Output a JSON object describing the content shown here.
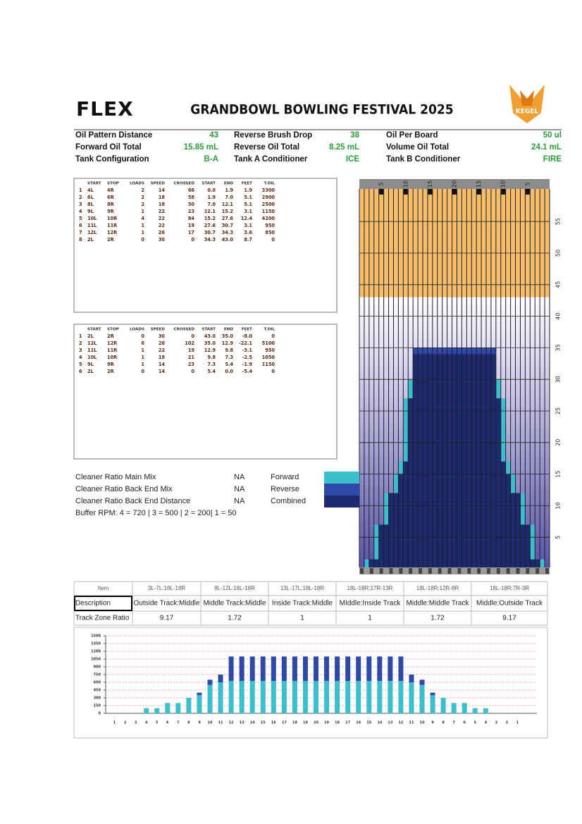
{
  "header": {
    "logo": "FLEX",
    "title": "GRANDBOWL BOWLING FESTIVAL 2025",
    "brand": "KEGEL"
  },
  "specs": [
    [
      {
        "label": "Oil Pattern Distance",
        "value": "43"
      },
      {
        "label": "Reverse Brush Drop",
        "value": "38"
      },
      {
        "label": "Oil Per Board",
        "value": "50 ul"
      }
    ],
    [
      {
        "label": "Forward Oil Total",
        "value": "15.85 mL"
      },
      {
        "label": "Reverse Oil Total",
        "value": "8.25 mL"
      },
      {
        "label": "Volume Oil Total",
        "value": "24.1 mL"
      }
    ],
    [
      {
        "label": "Tank Configuration",
        "value": "B-A"
      },
      {
        "label": "Tank A Conditioner",
        "value": "ICE"
      },
      {
        "label": "Tank B Conditioner",
        "value": "FIRE"
      }
    ]
  ],
  "forward_table": {
    "headers": [
      "START",
      "STOP",
      "LOADS",
      "SPEED",
      "CROSSED",
      "START",
      "END",
      "FEET",
      "T.OIL"
    ],
    "rows": [
      [
        "1",
        "4L",
        "4R",
        "2",
        "14",
        "66",
        "0.0",
        "1.9",
        "1.9",
        "3300"
      ],
      [
        "2",
        "6L",
        "6R",
        "2",
        "18",
        "58",
        "1.9",
        "7.0",
        "5.1",
        "2900"
      ],
      [
        "3",
        "8L",
        "8R",
        "2",
        "18",
        "50",
        "7.0",
        "12.1",
        "5.1",
        "2500"
      ],
      [
        "4",
        "9L",
        "9R",
        "1",
        "22",
        "23",
        "12.1",
        "15.2",
        "3.1",
        "1150"
      ],
      [
        "5",
        "10L",
        "10R",
        "4",
        "22",
        "84",
        "15.2",
        "27.6",
        "12.4",
        "4200"
      ],
      [
        "6",
        "11L",
        "11R",
        "1",
        "22",
        "19",
        "27.6",
        "30.7",
        "3.1",
        "950"
      ],
      [
        "7",
        "12L",
        "12R",
        "1",
        "26",
        "17",
        "30.7",
        "34.3",
        "3.6",
        "850"
      ],
      [
        "8",
        "2L",
        "2R",
        "0",
        "30",
        "0",
        "34.3",
        "43.0",
        "8.7",
        "0"
      ]
    ]
  },
  "reverse_table": {
    "headers": [
      "START",
      "STOP",
      "LOADS",
      "SPEED",
      "CROSSED",
      "START",
      "END",
      "FEET",
      "T.OIL"
    ],
    "rows": [
      [
        "1",
        "2L",
        "2R",
        "0",
        "30",
        "0",
        "43.0",
        "35.0",
        "-8.0",
        "0"
      ],
      [
        "2",
        "12L",
        "12R",
        "6",
        "26",
        "102",
        "35.0",
        "12.9",
        "-22.1",
        "5100"
      ],
      [
        "3",
        "11L",
        "11R",
        "1",
        "22",
        "19",
        "12.9",
        "9.8",
        "-3.1",
        "950"
      ],
      [
        "4",
        "10L",
        "10R",
        "1",
        "18",
        "21",
        "9.8",
        "7.3",
        "-2.5",
        "1050"
      ],
      [
        "5",
        "9L",
        "9R",
        "1",
        "14",
        "23",
        "7.3",
        "5.4",
        "-1.9",
        "1150"
      ],
      [
        "6",
        "2L",
        "2R",
        "0",
        "14",
        "0",
        "5.4",
        "0.0",
        "-5.4",
        "0"
      ]
    ]
  },
  "ratios": [
    {
      "label": "Cleaner Ratio Main Mix",
      "value": "NA"
    },
    {
      "label": "Cleaner Ratio Back End Mix",
      "value": "NA"
    },
    {
      "label": "Cleaner Ratio Back End Distance",
      "value": "NA"
    }
  ],
  "buffer_rpm": "Buffer RPM: 4 = 720 | 3 = 500 | 2 = 200| 1 = 50",
  "legend": [
    {
      "name": "Forward",
      "color": "#3bbfcc"
    },
    {
      "name": "Reverse",
      "color": "#2e49a8"
    },
    {
      "name": "Combined",
      "color": "#1d2a6e"
    }
  ],
  "lane": {
    "board_labels": [
      "5",
      "10",
      "15",
      "20",
      "15",
      "10",
      "5"
    ],
    "distance_labels": [
      55,
      50,
      45,
      40,
      35,
      30,
      25,
      20,
      15,
      10,
      5
    ]
  },
  "zone_table": {
    "header": [
      "Item",
      "3L-7L:18L-18R",
      "8L-12L:18L-18R",
      "13L-17L:18L-18R",
      "18L-18R:17R-13R",
      "18L-18R:12R-8R",
      "18L-18R:7R-3R"
    ],
    "rows": [
      [
        "Description",
        "Outside Track:Middle",
        "Middle Track:Middle",
        "Inside Track:Middle",
        "MIddle:Inside Track",
        "Middle:Middle Track",
        "Middle:Outside Track"
      ],
      [
        "Track Zone Ratio",
        "9.17",
        "1.72",
        "1",
        "1",
        "1.72",
        "9.17"
      ]
    ]
  },
  "chart_data": {
    "type": "bar",
    "stacked": true,
    "categories": [
      "1",
      "2",
      "3",
      "4",
      "5",
      "6",
      "7",
      "8",
      "9",
      "10",
      "11",
      "12",
      "13",
      "14",
      "15",
      "16",
      "17",
      "18",
      "19",
      "20",
      "19",
      "18",
      "17",
      "16",
      "15",
      "14",
      "13",
      "12",
      "11",
      "10",
      "9",
      "8",
      "7",
      "6",
      "5",
      "4",
      "3",
      "2",
      "1"
    ],
    "series": [
      {
        "color": "#3bbfcc",
        "values": [
          0,
          0,
          0,
          100,
          100,
          200,
          200,
          300,
          350,
          550,
          600,
          625,
          625,
          625,
          625,
          625,
          625,
          625,
          625,
          625,
          625,
          625,
          625,
          625,
          625,
          625,
          625,
          625,
          600,
          550,
          350,
          300,
          200,
          200,
          100,
          100,
          0,
          0,
          0
        ]
      },
      {
        "color": "#2e49a8",
        "values": [
          0,
          0,
          0,
          0,
          0,
          0,
          0,
          0,
          50,
          100,
          150,
          475,
          475,
          475,
          475,
          475,
          475,
          475,
          475,
          475,
          475,
          475,
          475,
          475,
          475,
          475,
          475,
          475,
          150,
          100,
          50,
          0,
          0,
          0,
          0,
          0,
          0,
          0,
          0
        ]
      }
    ],
    "ylim": [
      0,
      1500
    ],
    "yticks": [
      0,
      150,
      300,
      450,
      600,
      750,
      900,
      1050,
      1200,
      1350,
      1500
    ],
    "grid": true
  }
}
